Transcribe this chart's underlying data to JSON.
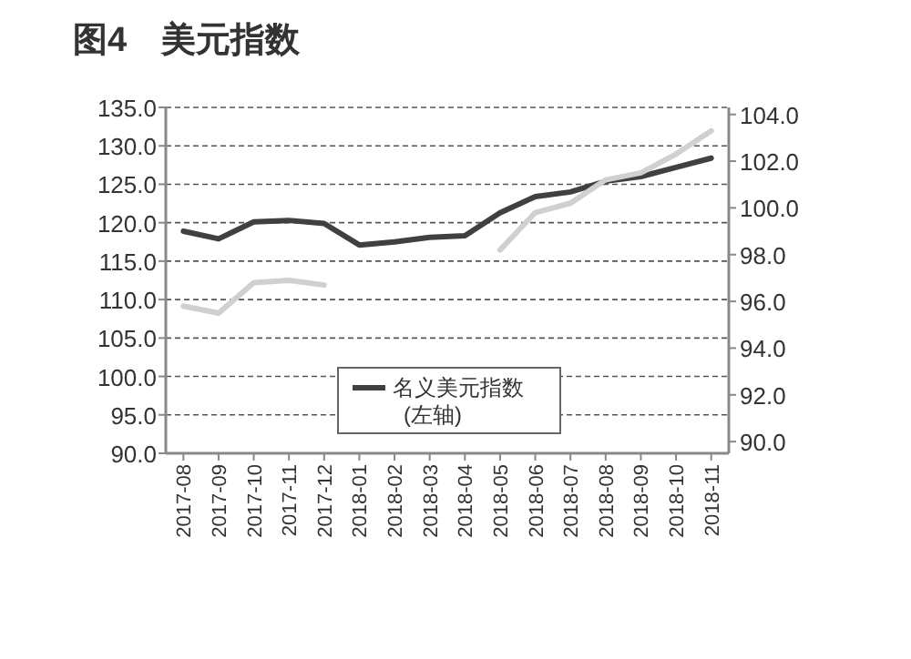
{
  "chart_data": {
    "type": "line",
    "title": "图4　美元指数",
    "categories": [
      "2017-08",
      "2017-09",
      "2017-10",
      "2017-11",
      "2017-12",
      "2018-01",
      "2018-02",
      "2018-03",
      "2018-04",
      "2018-05",
      "2018-06",
      "2018-07",
      "2018-08",
      "2018-09",
      "2018-10",
      "2018-11"
    ],
    "series": [
      {
        "name": "名义美元指数\n(左轴)",
        "color": "#404040",
        "values": [
          118.9,
          117.9,
          120.1,
          120.3,
          119.9,
          117.1,
          117.5,
          118.1,
          118.3,
          121.3,
          123.4,
          124.0,
          125.4,
          126.0,
          127.2,
          128.4
        ]
      },
      {
        "color": "#d0d0d0",
        "axis": "y2",
        "values": [
          95.8,
          95.5,
          96.8,
          96.9,
          96.7,
          null,
          null,
          null,
          null,
          98.2,
          99.8,
          100.2,
          101.2,
          101.5,
          102.3,
          103.3
        ]
      }
    ],
    "ylim": [
      90,
      135
    ],
    "yticks": [
      {
        "value": 90,
        "label": "90.0"
      },
      {
        "value": 95,
        "label": "95.0"
      },
      {
        "value": 100,
        "label": "100.0"
      },
      {
        "value": 105,
        "label": "105.0"
      },
      {
        "value": 110,
        "label": "110.0"
      },
      {
        "value": 115,
        "label": "115.0"
      },
      {
        "value": 120,
        "label": "120.0"
      },
      {
        "value": 125,
        "label": "125.0"
      },
      {
        "value": 130,
        "label": "130.0"
      },
      {
        "value": 135,
        "label": "135.0"
      }
    ],
    "y2lim": [
      89.5,
      104.3
    ],
    "y2ticks": [
      {
        "value": 90,
        "label": "90.0"
      },
      {
        "value": 92,
        "label": "92.0"
      },
      {
        "value": 94,
        "label": "94.0"
      },
      {
        "value": 96,
        "label": "96.0"
      },
      {
        "value": 98,
        "label": "98.0"
      },
      {
        "value": 100,
        "label": "100.0"
      },
      {
        "value": 102,
        "label": "102.0"
      },
      {
        "value": 104,
        "label": "104.0"
      }
    ],
    "grid": "y",
    "legend": "bottom"
  }
}
